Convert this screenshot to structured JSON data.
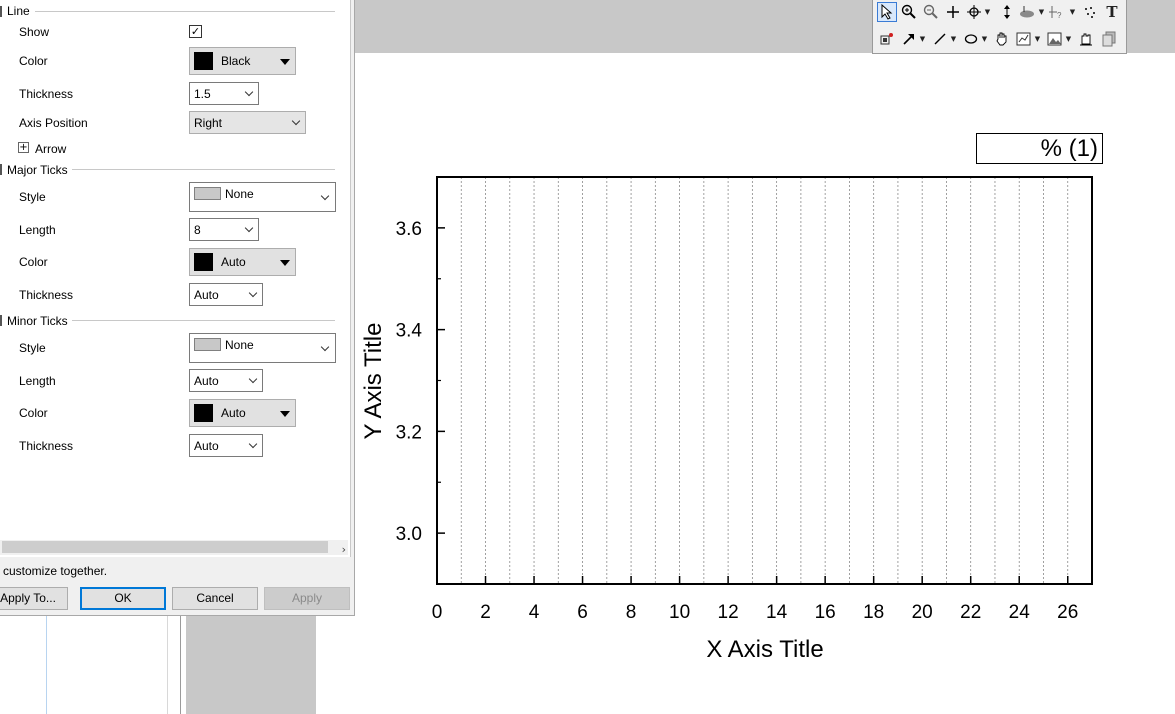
{
  "dialog": {
    "line_group": {
      "label": "Line",
      "show_label": "Show",
      "show_checked": "✓",
      "color_label": "Color",
      "color_value": "Black",
      "thickness_label": "Thickness",
      "thickness_value": "1.5",
      "axis_position_label": "Axis Position",
      "axis_position_value": "Right",
      "arrow_label": "Arrow",
      "arrow_expander": "+"
    },
    "major_ticks": {
      "label": "Major Ticks",
      "style_label": "Style",
      "style_value": "None",
      "length_label": "Length",
      "length_value": "8",
      "color_label": "Color",
      "color_value": "Auto",
      "thickness_label": "Thickness",
      "thickness_value": "Auto"
    },
    "minor_ticks": {
      "label": "Minor Ticks",
      "style_label": "Style",
      "style_value": "None",
      "length_label": "Length",
      "length_value": "Auto",
      "color_label": "Color",
      "color_value": "Auto",
      "thickness_label": "Thickness",
      "thickness_value": "Auto"
    },
    "status_text": "customize together.",
    "buttons": {
      "apply_to": "Apply To...",
      "ok": "OK",
      "cancel": "Cancel",
      "apply": "Apply"
    }
  },
  "toolbar": {
    "row1": [
      "pointer-icon",
      "zoom-in-icon",
      "zoom-out-icon",
      "screen-reader-icon",
      "data-reader-icon",
      "scale-icon",
      "mask-icon",
      "region-icon",
      "scatter-select-icon",
      "text-tool-icon"
    ],
    "row2": [
      "add-layer-icon",
      "arrow-tool-icon",
      "line-tool-icon",
      "ellipse-tool-icon",
      "pan-icon",
      "insert-graph-icon",
      "insert-image-icon",
      "hand-icon",
      "layers-icon"
    ]
  },
  "graph": {
    "legend_text": "% (1)",
    "x_axis_title": "X Axis Title",
    "y_axis_title": "Y Axis Title"
  },
  "chart_data": {
    "type": "line",
    "xlabel": "X Axis Title",
    "ylabel": "Y Axis Title",
    "xlim": [
      0,
      27
    ],
    "ylim": [
      2.9,
      3.7
    ],
    "x_ticks": [
      "0",
      "2",
      "4",
      "6",
      "8",
      "10",
      "12",
      "14",
      "16",
      "18",
      "20",
      "22",
      "24",
      "26"
    ],
    "y_ticks": [
      "3.0",
      "3.2",
      "3.4",
      "3.6"
    ],
    "series": [],
    "vertical_grid": true,
    "vertical_grid_step": 1,
    "legend": "top-right"
  }
}
